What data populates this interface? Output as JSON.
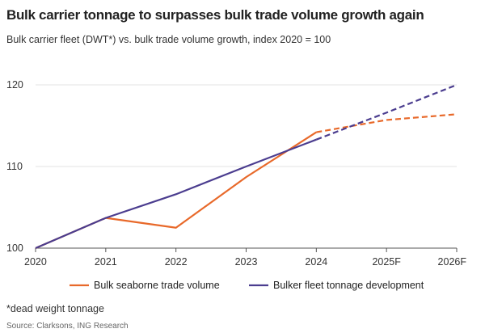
{
  "chart_data": {
    "type": "line",
    "title": "Bulk carrier tonnage to surpasses bulk trade volume growth again",
    "subtitle": "Bulk carrier fleet (DWT*) vs. bulk trade volume growth, index 2020 = 100",
    "categories": [
      "2020",
      "2021",
      "2022",
      "2023",
      "2024",
      "2025F",
      "2026F"
    ],
    "ylim": [
      100,
      120
    ],
    "yticks": [
      "100",
      "110",
      "120"
    ],
    "grid": true,
    "legend_position": "bottom",
    "forecast_style": "dashed from 2024",
    "series": [
      {
        "name": "Bulk seaborne trade volume",
        "color": "#e8692a",
        "values": [
          100,
          103.7,
          102.5,
          108.7,
          114.2,
          115.7,
          116.4
        ]
      },
      {
        "name": "Bulker fleet tonnage development",
        "color": "#4b3d8f",
        "values": [
          100,
          103.7,
          106.6,
          110.0,
          113.3,
          116.6,
          120.0
        ]
      }
    ],
    "footnote": "*dead weight tonnage",
    "source": "Source: Clarksons, ING Research"
  }
}
